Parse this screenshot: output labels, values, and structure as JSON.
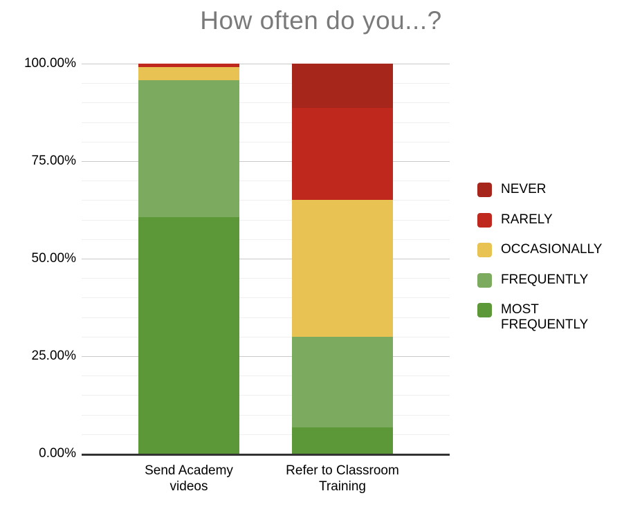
{
  "chart": {
    "title": "How often do you...?"
  },
  "chart_data": {
    "type": "bar",
    "subtype": "stacked-100-percent-column",
    "title": "How often do you...?",
    "categories": [
      "Send Academy videos",
      "Refer to Classroom Training"
    ],
    "category_label_lines": [
      [
        "Send Academy",
        "videos"
      ],
      [
        "Refer to Classroom",
        "Training"
      ]
    ],
    "series": [
      {
        "name": "NEVER",
        "color": "#a6261b",
        "values": [
          0,
          11.3
        ]
      },
      {
        "name": "RARELY",
        "color": "#bf291d",
        "values": [
          0.9,
          23.7
        ]
      },
      {
        "name": "OCCASIONALLY",
        "color": "#e8c353",
        "values": [
          3.4,
          35.0
        ]
      },
      {
        "name": "FREQUENTLY",
        "color": "#7caa5e",
        "values": [
          35.0,
          23.3
        ]
      },
      {
        "name": "MOST FREQUENTLY",
        "color": "#5c9837",
        "values": [
          60.7,
          6.7
        ]
      }
    ],
    "stack_order_bottom_to_top": [
      "MOST FREQUENTLY",
      "FREQUENTLY",
      "OCCASIONALLY",
      "RARELY",
      "NEVER"
    ],
    "legend_position": "right",
    "legend_label_lines": [
      [
        "NEVER"
      ],
      [
        "RARELY"
      ],
      [
        "OCCASIONALLY"
      ],
      [
        "FREQUENTLY"
      ],
      [
        "MOST",
        "FREQUENTLY"
      ]
    ],
    "ylim": [
      0,
      100
    ],
    "y_ticks": [
      {
        "value": 100,
        "label": "100.00%"
      },
      {
        "value": 75,
        "label": "75.00%"
      },
      {
        "value": 50,
        "label": "50.00%"
      },
      {
        "value": 25,
        "label": "25.00%"
      },
      {
        "value": 0,
        "label": "0.00%"
      }
    ],
    "minor_grid_step": 5,
    "grid": true,
    "style_colors": {
      "title_color": "#7a7a7a",
      "grid_minor": "#efefef",
      "grid_major": "#c9c9c9",
      "axis_line": "#333333",
      "background": "#ffffff",
      "label_color": "#000000"
    }
  }
}
